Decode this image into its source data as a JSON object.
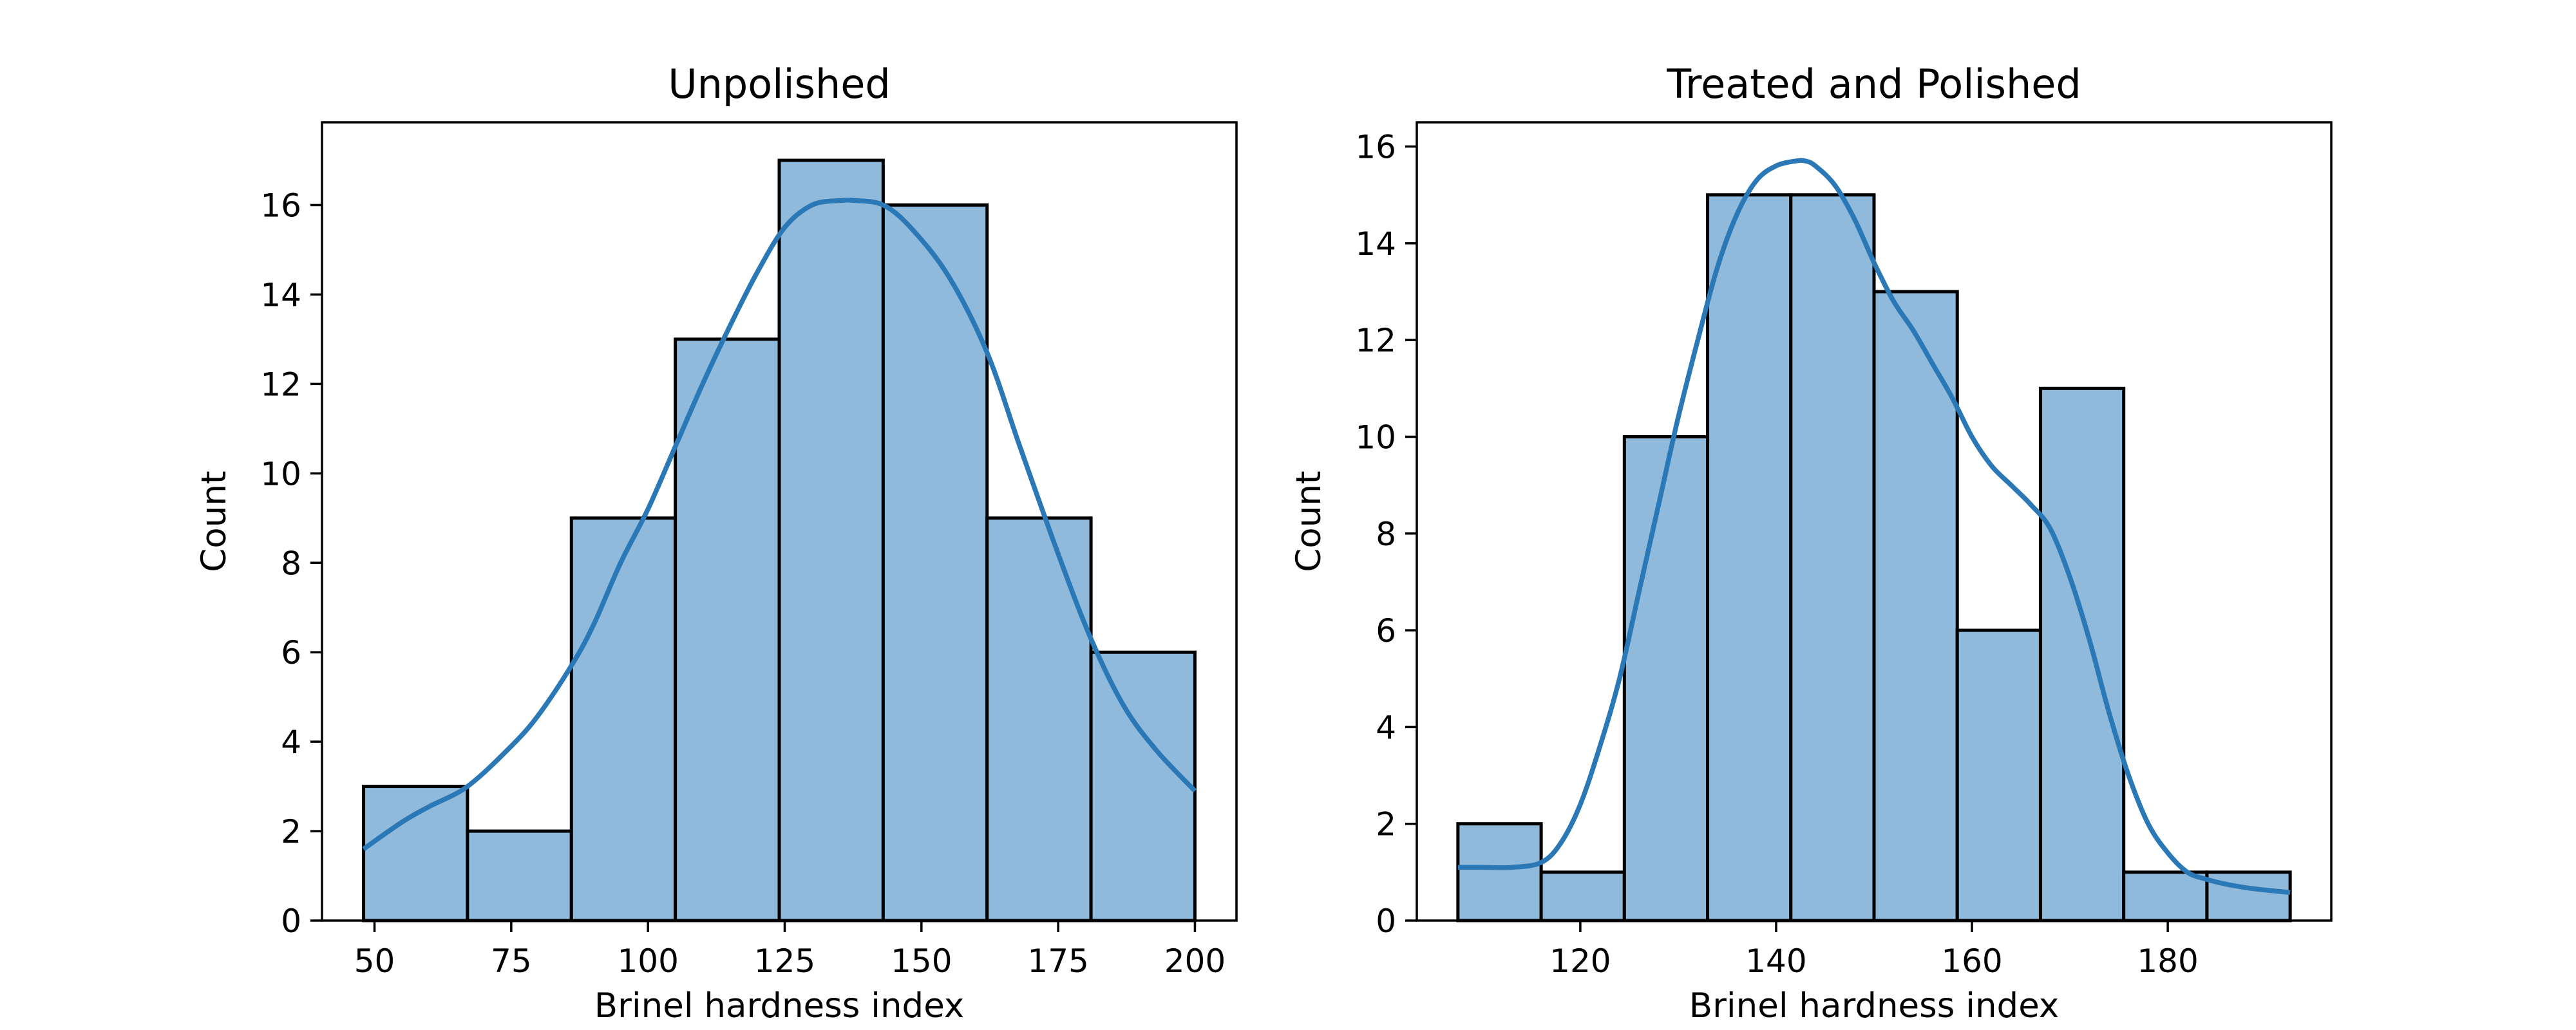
{
  "chart_data": [
    {
      "type": "bar",
      "title": "Unpolished",
      "xlabel": "Brinel hardness index",
      "ylabel": "Count",
      "xlim": [
        40.4,
        207.6
      ],
      "ylim": [
        0,
        17.85
      ],
      "xticks": [
        50,
        75,
        100,
        125,
        150,
        175,
        200
      ],
      "yticks": [
        0,
        2,
        4,
        6,
        8,
        10,
        12,
        14,
        16
      ],
      "bin_edges": [
        48,
        67,
        86,
        105,
        124,
        143,
        162,
        181,
        200
      ],
      "values": [
        3,
        2,
        9,
        13,
        17,
        16,
        9,
        6
      ],
      "kde": {
        "x": [
          48,
          55,
          60,
          67,
          75,
          80,
          86,
          90,
          95,
          100,
          105,
          110,
          115,
          120,
          125,
          130,
          135,
          138,
          143,
          148,
          155,
          162,
          168,
          175,
          181,
          187,
          193,
          200
        ],
        "y": [
          1.6,
          2.2,
          2.55,
          3.0,
          3.9,
          4.6,
          5.7,
          6.6,
          8.0,
          9.2,
          10.6,
          12.0,
          13.3,
          14.5,
          15.5,
          16.0,
          16.1,
          16.1,
          16.0,
          15.5,
          14.4,
          12.7,
          10.6,
          8.2,
          6.3,
          4.8,
          3.8,
          2.9
        ]
      },
      "bar_fill": "#8fbadb",
      "line_color": "#2a78b6",
      "grid": false
    },
    {
      "type": "bar",
      "title": "Treated and Polished",
      "xlabel": "Brinel hardness index",
      "ylabel": "Count",
      "xlim": [
        103.3,
        196.7
      ],
      "ylim": [
        0,
        16.5
      ],
      "xticks": [
        120,
        140,
        160,
        180
      ],
      "yticks": [
        0,
        2,
        4,
        6,
        8,
        10,
        12,
        14,
        16
      ],
      "bin_edges": [
        107.5,
        116,
        124.5,
        133,
        141.5,
        150,
        158.5,
        167,
        175.5,
        184,
        192.5
      ],
      "values": [
        2,
        1,
        10,
        15,
        15,
        13,
        6,
        11,
        1,
        1
      ],
      "kde": {
        "x": [
          107.5,
          110,
          113,
          116,
          118,
          120,
          122,
          124,
          126,
          128,
          130,
          132,
          134,
          136,
          138,
          140,
          142,
          143,
          144,
          146,
          148,
          150,
          152,
          154,
          156,
          158,
          160,
          162,
          164,
          166,
          168,
          170,
          172,
          174,
          176,
          178,
          180,
          182,
          184,
          186,
          188,
          190,
          192.5
        ],
        "y": [
          1.1,
          1.1,
          1.1,
          1.2,
          1.6,
          2.4,
          3.6,
          5.0,
          6.8,
          8.6,
          10.4,
          12.0,
          13.5,
          14.6,
          15.3,
          15.6,
          15.7,
          15.7,
          15.6,
          15.2,
          14.5,
          13.6,
          12.8,
          12.2,
          11.5,
          10.8,
          10.0,
          9.4,
          9.0,
          8.6,
          8.1,
          7.1,
          5.8,
          4.3,
          3.0,
          2.0,
          1.4,
          1.0,
          0.85,
          0.75,
          0.68,
          0.63,
          0.58
        ]
      },
      "bar_fill": "#8fbadb",
      "line_color": "#2a78b6",
      "grid": false
    }
  ]
}
